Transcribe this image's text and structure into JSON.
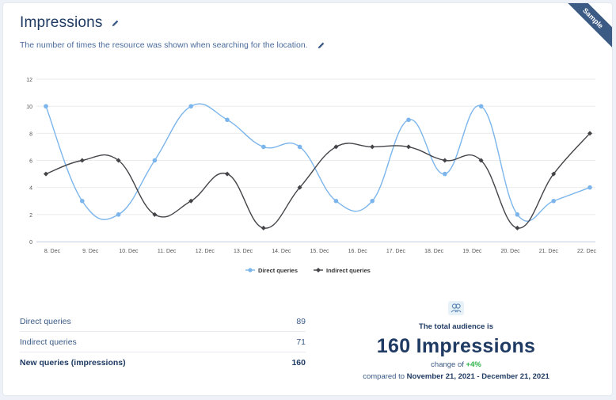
{
  "header": {
    "title": "Impressions",
    "description": "The number of times the resource was shown when searching for the location.",
    "badge": "Sample"
  },
  "chart_data": {
    "type": "line",
    "title": "",
    "xlabel": "",
    "ylabel": "",
    "x": [
      "8. Dec",
      "9. Dec",
      "10. Dec",
      "11. Dec",
      "12. Dec",
      "13. Dec",
      "14. Dec",
      "15. Dec",
      "16. Dec",
      "17. Dec",
      "18. Dec",
      "19. Dec",
      "20. Dec",
      "21. Dec",
      "22. Dec",
      "23. Dec"
    ],
    "xticks": [
      "8. Dec",
      "9. Dec",
      "10. Dec",
      "11. Dec",
      "12. Dec",
      "13. Dec",
      "14. Dec",
      "15. Dec",
      "16. Dec",
      "17. Dec",
      "18. Dec",
      "19. Dec",
      "20. Dec",
      "21. Dec",
      "22. Dec"
    ],
    "yticks": [
      0,
      2,
      4,
      6,
      8,
      10,
      12
    ],
    "ylim": [
      0,
      12
    ],
    "grid": true,
    "legend_position": "bottom",
    "series": [
      {
        "name": "Direct queries",
        "color": "#7cb5ec",
        "marker": "circle",
        "values": [
          10,
          3,
          2,
          6,
          10,
          9,
          7,
          7,
          3,
          3,
          9,
          5,
          10,
          2,
          3,
          4
        ]
      },
      {
        "name": "Indirect queries",
        "color": "#434348",
        "marker": "diamond",
        "values": [
          5,
          6,
          6,
          2,
          3,
          5,
          1,
          4,
          7,
          7,
          7,
          6,
          6,
          1,
          5,
          8
        ]
      }
    ]
  },
  "stats": {
    "rows": [
      {
        "label": "Direct queries",
        "value": "89"
      },
      {
        "label": "Indirect queries",
        "value": "71"
      },
      {
        "label": "New queries (impressions)",
        "value": "160"
      }
    ]
  },
  "summary": {
    "label": "The total audience is",
    "big": "160 Impressions",
    "change_prefix": "change of",
    "change_value": "+4%",
    "compare_prefix": "compared to",
    "compare_range": "November 21, 2021 - December 21, 2021"
  }
}
